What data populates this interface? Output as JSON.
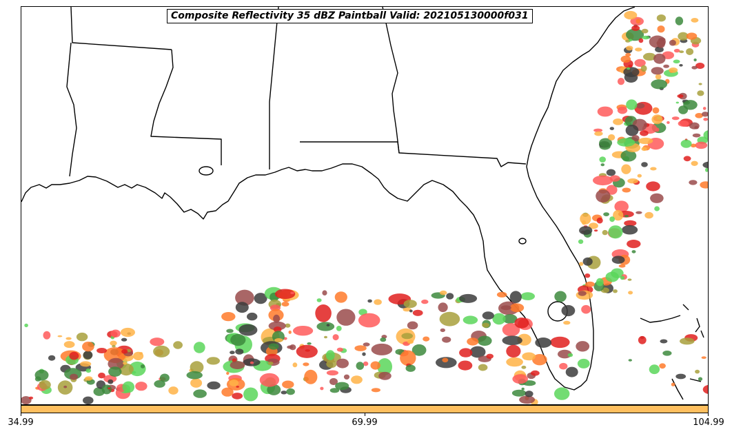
{
  "title": "Composite Reflectivity 35 dBZ Paintball Valid: 202105130000f031",
  "colorbar": {
    "color": "#ffbf5f",
    "ticks": [
      "34.99",
      "69.99",
      "104.99"
    ]
  },
  "paintball_colors": [
    "#ff5a5a",
    "#ffb347",
    "#5ad65a",
    "#9a4b4b",
    "#3c3c3c",
    "#a8a03c",
    "#3d8a3d",
    "#e0201e",
    "#ff7a2a"
  ],
  "map_style": {
    "land": "#ffffff",
    "water": "#ffffff",
    "coastline": "#000000",
    "state_lines": "#000000"
  }
}
